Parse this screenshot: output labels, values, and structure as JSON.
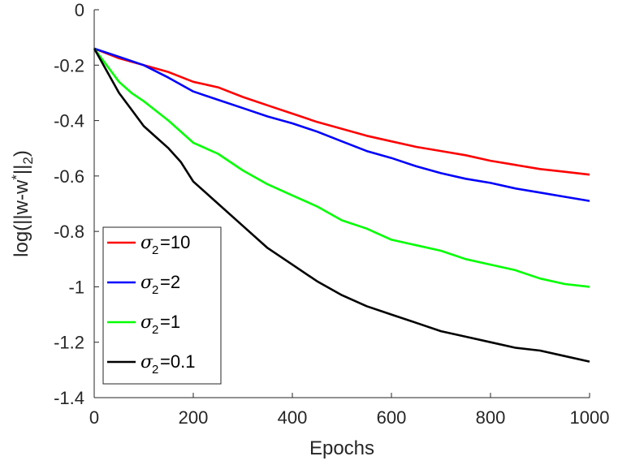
{
  "chart_data": {
    "type": "line",
    "xlabel": "Epochs",
    "ylabel": "log(||w-w*||2)",
    "ylabel_parts": {
      "main": "log(||w-w",
      "sup": "*",
      "mid": "||",
      "sub": "2",
      "end": ")"
    },
    "xlim": [
      0,
      1000
    ],
    "ylim": [
      -1.4,
      0
    ],
    "xticks": [
      0,
      200,
      400,
      600,
      800,
      1000
    ],
    "yticks": [
      0,
      -0.2,
      -0.4,
      -0.6,
      -0.8,
      -1,
      -1.2,
      -1.4
    ],
    "xtick_labels": [
      "0",
      "200",
      "400",
      "600",
      "800",
      "1000"
    ],
    "ytick_labels": [
      "0",
      "-0.2",
      "-0.4",
      "-0.6",
      "-0.8",
      "-1",
      "-1.2",
      "-1.4"
    ],
    "grid": false,
    "legend_position": "bottom-left",
    "series": [
      {
        "name": "σ2=10",
        "legend_symbol": "σ",
        "legend_sub": "2",
        "legend_value": "=10",
        "color": "#ff0000",
        "x": [
          0,
          50,
          100,
          150,
          200,
          250,
          300,
          350,
          400,
          450,
          500,
          550,
          600,
          650,
          700,
          750,
          800,
          850,
          900,
          950,
          1000
        ],
        "y": [
          -0.14,
          -0.175,
          -0.2,
          -0.225,
          -0.26,
          -0.28,
          -0.315,
          -0.345,
          -0.375,
          -0.405,
          -0.43,
          -0.455,
          -0.475,
          -0.495,
          -0.51,
          -0.525,
          -0.545,
          -0.56,
          -0.575,
          -0.585,
          -0.595
        ]
      },
      {
        "name": "σ2=2",
        "legend_symbol": "σ",
        "legend_sub": "2",
        "legend_value": "=2",
        "color": "#0000ff",
        "x": [
          0,
          50,
          100,
          150,
          200,
          250,
          300,
          350,
          400,
          450,
          500,
          550,
          600,
          650,
          700,
          750,
          800,
          850,
          900,
          950,
          1000
        ],
        "y": [
          -0.14,
          -0.17,
          -0.2,
          -0.245,
          -0.295,
          -0.325,
          -0.355,
          -0.385,
          -0.41,
          -0.44,
          -0.475,
          -0.51,
          -0.535,
          -0.565,
          -0.59,
          -0.61,
          -0.625,
          -0.645,
          -0.66,
          -0.675,
          -0.69
        ]
      },
      {
        "name": "σ2=1",
        "legend_symbol": "σ",
        "legend_sub": "2",
        "legend_value": "=1",
        "color": "#00ff00",
        "x": [
          0,
          25,
          50,
          75,
          100,
          150,
          200,
          250,
          300,
          350,
          400,
          450,
          500,
          550,
          600,
          650,
          700,
          750,
          800,
          850,
          900,
          950,
          1000
        ],
        "y": [
          -0.14,
          -0.2,
          -0.26,
          -0.3,
          -0.33,
          -0.4,
          -0.48,
          -0.52,
          -0.58,
          -0.63,
          -0.67,
          -0.71,
          -0.76,
          -0.79,
          -0.83,
          -0.85,
          -0.87,
          -0.9,
          -0.92,
          -0.94,
          -0.97,
          -0.99,
          -1.0
        ]
      },
      {
        "name": "σ2=0.1",
        "legend_symbol": "σ",
        "legend_sub": "2",
        "legend_value": "=0.1",
        "color": "#000000",
        "x": [
          0,
          25,
          50,
          75,
          100,
          125,
          150,
          175,
          200,
          250,
          300,
          350,
          400,
          450,
          500,
          550,
          600,
          650,
          700,
          750,
          800,
          850,
          900,
          950,
          1000
        ],
        "y": [
          -0.14,
          -0.22,
          -0.3,
          -0.36,
          -0.42,
          -0.46,
          -0.5,
          -0.55,
          -0.62,
          -0.7,
          -0.78,
          -0.86,
          -0.92,
          -0.98,
          -1.03,
          -1.07,
          -1.1,
          -1.13,
          -1.16,
          -1.18,
          -1.2,
          -1.22,
          -1.23,
          -1.25,
          -1.27
        ]
      }
    ]
  }
}
